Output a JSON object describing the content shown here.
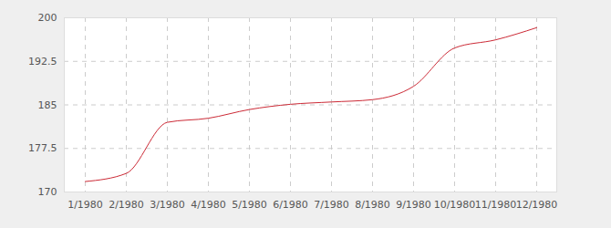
{
  "chart_data": {
    "type": "line",
    "categories": [
      "1/1980",
      "2/1980",
      "3/1980",
      "4/1980",
      "5/1980",
      "6/1980",
      "7/1980",
      "8/1980",
      "9/1980",
      "10/1980",
      "11/1980",
      "12/1980"
    ],
    "values": [
      171.8,
      173.2,
      182.0,
      182.7,
      184.2,
      185.1,
      185.5,
      185.9,
      188.2,
      194.8,
      196.2,
      198.3
    ],
    "color": "#cc2a36",
    "ylim": [
      170,
      200
    ],
    "yticks": [
      170,
      177.5,
      185,
      192.5,
      200
    ],
    "grid": true
  }
}
